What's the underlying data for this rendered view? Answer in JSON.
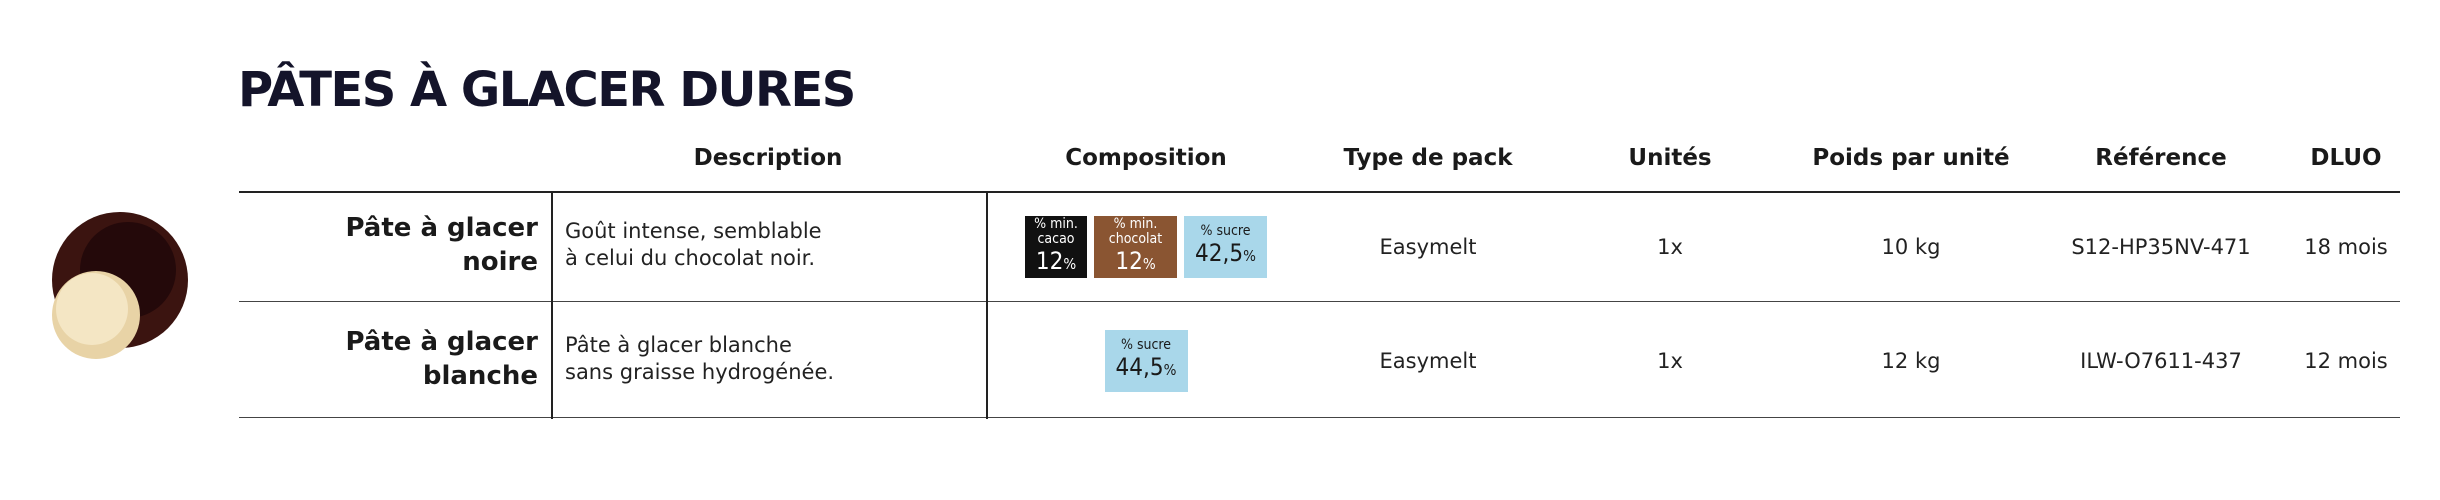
{
  "header": {
    "title": "PÂTES À GLACER DURES"
  },
  "table": {
    "headers": [
      "Description",
      "Composition",
      "Type de pack",
      "Unités",
      "Poids par unité",
      "Référence",
      "DLUO"
    ],
    "rows": [
      {
        "name": [
          "Pâte à glacer",
          "noire"
        ],
        "description": [
          "Goût intense, semblable",
          "à celui du chocolat noir."
        ],
        "composition": [
          {
            "label": [
              "% min.",
              "cacao"
            ],
            "value": "12",
            "unit": "%",
            "color": "#111111",
            "text_color": "#ffffff"
          },
          {
            "label": [
              "% min.",
              "chocolat"
            ],
            "value": "12",
            "unit": "%",
            "color": "#8a5532",
            "text_color": "#ffffff"
          },
          {
            "label": [
              "% sucre"
            ],
            "value": "42,5",
            "unit": "%",
            "color": "#a9d7ea",
            "text_color": "#1a1a1a"
          }
        ],
        "pack": "Easymelt",
        "units": "1x",
        "weight": "10 kg",
        "reference": "S12-HP35NV-471",
        "dluo": "18 mois"
      },
      {
        "name": [
          "Pâte à glacer",
          "blanche"
        ],
        "description": [
          "Pâte à glacer blanche",
          "sans graisse hydrogénée."
        ],
        "composition": [
          {
            "label": [
              "% sucre"
            ],
            "value": "44,5",
            "unit": "%",
            "color": "#a9d7ea",
            "text_color": "#1a1a1a"
          }
        ],
        "pack": "Easymelt",
        "units": "1x",
        "weight": "12 kg",
        "reference": "ILW-O7611-437",
        "dluo": "12 mois"
      }
    ]
  }
}
